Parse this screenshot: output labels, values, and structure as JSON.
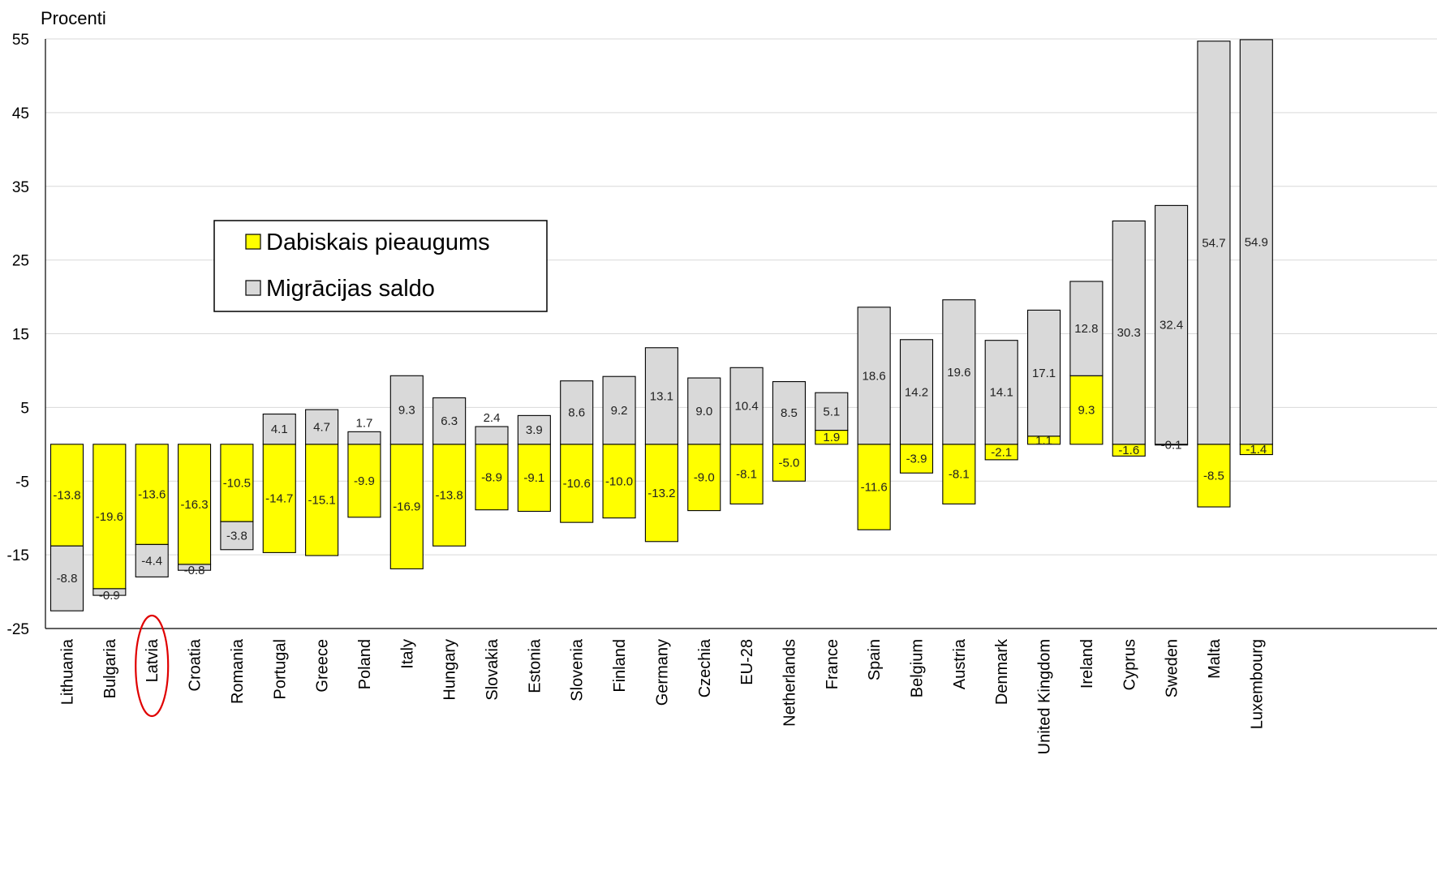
{
  "chart_data": {
    "type": "bar",
    "stacked": true,
    "ylabel": "Procenti",
    "ylim": [
      -25,
      55
    ],
    "yticks": [
      55,
      45,
      35,
      25,
      15,
      5,
      -5,
      -15,
      -25
    ],
    "grid": true,
    "legend_position": "left-middle",
    "highlighted_category": "Latvia",
    "categories": [
      "Lithuania",
      "Bulgaria",
      "Latvia",
      "Croatia",
      "Romania",
      "Portugal",
      "Greece",
      "Poland",
      "Italy",
      "Hungary",
      "Slovakia",
      "Estonia",
      "Slovenia",
      "Finland",
      "Germany",
      "Czechia",
      "EU-28",
      "Netherlands",
      "France",
      "Spain",
      "Belgium",
      "Austria",
      "Denmark",
      "United Kingdom",
      "Ireland",
      "Cyprus",
      "Sweden",
      "Malta",
      "Luxembourg"
    ],
    "series": [
      {
        "name": "Dabiskais pieaugums",
        "color": "#ffff00",
        "values": [
          -13.8,
          -19.6,
          -13.6,
          -16.3,
          -10.5,
          -14.7,
          -15.1,
          -9.9,
          -16.9,
          -13.8,
          -8.9,
          -9.1,
          -10.6,
          -10.0,
          -13.2,
          -9.0,
          -8.1,
          -5.0,
          1.9,
          -11.6,
          -3.9,
          -8.1,
          -2.1,
          1.1,
          9.3,
          -1.6,
          -0.1,
          -8.5,
          -1.4
        ],
        "labels": [
          "-13.8",
          "-19.6",
          "-13.6",
          "-16.3",
          "-10.5",
          "-14.7",
          "-15.1",
          "-9.9",
          "-16.9",
          "-13.8",
          "-8.9",
          "-9.1",
          "-10.6",
          "-10.0",
          "-13.2",
          "-9.0",
          "-8.1",
          "-5.0",
          "1.9",
          "-11.6",
          "-3.9",
          "-8.1",
          "-2.1",
          "1.1",
          "9.3",
          "-1.6",
          "-0.1",
          "-8.5",
          "-1.4"
        ]
      },
      {
        "name": "Migrācijas saldo",
        "color": "#d9d9d9",
        "values": [
          -8.8,
          -0.9,
          -4.4,
          -0.8,
          -3.8,
          4.1,
          4.7,
          1.7,
          9.3,
          6.3,
          2.4,
          3.9,
          8.6,
          9.2,
          13.1,
          9.0,
          10.4,
          8.5,
          5.1,
          18.6,
          14.2,
          19.6,
          14.1,
          17.1,
          12.8,
          30.3,
          32.4,
          54.7,
          54.9
        ],
        "labels": [
          "-8.8",
          "-0.9",
          "-4.4",
          "-0.8",
          "-3.8",
          "4.1",
          "4.7",
          "1.7",
          "9.3",
          "6.3",
          "2.4",
          "3.9",
          "8.6",
          "9.2",
          "13.1",
          "9.0",
          "10.4",
          "8.5",
          "5.1",
          "18.6",
          "14.2",
          "19.6",
          "14.1",
          "17.1",
          "12.8",
          "30.3",
          "32.4",
          "54.7",
          "54.9"
        ]
      }
    ]
  }
}
